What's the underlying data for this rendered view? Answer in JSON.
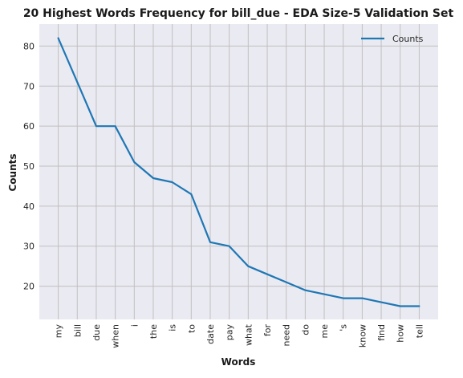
{
  "chart_data": {
    "type": "line",
    "title": "20 Highest Words Frequency for bill_due - EDA Size-5 Validation Set",
    "xlabel": "Words",
    "ylabel": "Counts",
    "categories": [
      "my",
      "bill",
      "due",
      "when",
      "i",
      "the",
      "is",
      "to",
      "date",
      "pay",
      "what",
      "for",
      "need",
      "do",
      "me",
      "'s",
      "know",
      "find",
      "how",
      "tell"
    ],
    "series": [
      {
        "name": "Counts",
        "values": [
          82,
          71,
          60,
          60,
          51,
          47,
          46,
          43,
          31,
          30,
          25,
          23,
          21,
          19,
          18,
          17,
          17,
          16,
          15,
          15
        ]
      }
    ],
    "ylim": [
      11.7,
      85.5
    ],
    "yticks": [
      20,
      30,
      40,
      50,
      60,
      70,
      80
    ],
    "grid": true,
    "legend_position": "top-right",
    "colors": {
      "line": "#1f77b4",
      "plot_bg": "#eaeaf2",
      "grid": "#c0c0c0"
    }
  }
}
